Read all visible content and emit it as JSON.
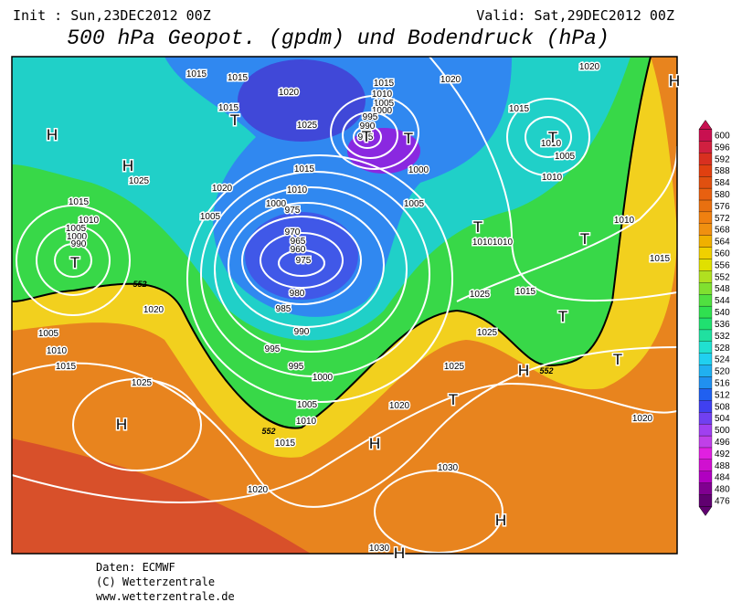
{
  "header": {
    "init": "Init : Sun,23DEC2012 00Z",
    "valid": "Valid: Sat,29DEC2012 00Z",
    "title": "500 hPa Geopot. (gpdm) und Bodendruck (hPa)"
  },
  "legend": {
    "levels": [
      476,
      480,
      484,
      488,
      492,
      496,
      500,
      504,
      508,
      512,
      516,
      520,
      524,
      528,
      532,
      536,
      540,
      544,
      548,
      552,
      556,
      560,
      564,
      568,
      572,
      576,
      580,
      584,
      588,
      592,
      596,
      600
    ],
    "colors": [
      "#600070",
      "#800090",
      "#b000c0",
      "#d010d0",
      "#e020e0",
      "#c040e8",
      "#a040f0",
      "#7040f0",
      "#4040f0",
      "#2060f0",
      "#2090f0",
      "#20b0f0",
      "#20d0f0",
      "#20e0d0",
      "#20e0a0",
      "#20e070",
      "#30e050",
      "#50e040",
      "#80e030",
      "#b0e020",
      "#e0e000",
      "#f0d000",
      "#f0b000",
      "#f09010",
      "#f08010",
      "#e87010",
      "#e86010",
      "#e05010",
      "#e04010",
      "#d83020",
      "#d02040",
      "#c81050"
    ]
  },
  "isobar_labels": [
    "1015",
    "1015",
    "1015",
    "1020",
    "1025",
    "1025",
    "1015",
    "1020",
    "1010",
    "1005",
    "1000",
    "975",
    "970",
    "965",
    "960",
    "975",
    "980",
    "985",
    "990",
    "995",
    "995",
    "1000",
    "1005",
    "1010",
    "1015",
    "1020",
    "1025",
    "1020",
    "1005",
    "1010",
    "1015",
    "1015",
    "1010",
    "1005",
    "1000",
    "990",
    "1015",
    "1010",
    "1005",
    "1000",
    "995",
    "990",
    "975",
    "1000",
    "1005",
    "1020",
    "1020",
    "1015",
    "1010",
    "1005",
    "1010",
    "1010",
    "1015",
    "1015",
    "1020",
    "1025",
    "1025",
    "1025",
    "1030",
    "1030",
    "1020",
    "1010",
    "1010"
  ],
  "pressure_centers": [
    "H",
    "H",
    "H",
    "H",
    "H",
    "H",
    "H",
    "H",
    "T",
    "T",
    "T",
    "T",
    "T",
    "T",
    "T",
    "T",
    "T",
    "T"
  ],
  "contour_labels": [
    "552",
    "552",
    "552"
  ],
  "footer": {
    "source": "Daten: ECMWF",
    "copyright": "(C) Wetterzentrale",
    "url": "www.wetterzentrale.de"
  }
}
